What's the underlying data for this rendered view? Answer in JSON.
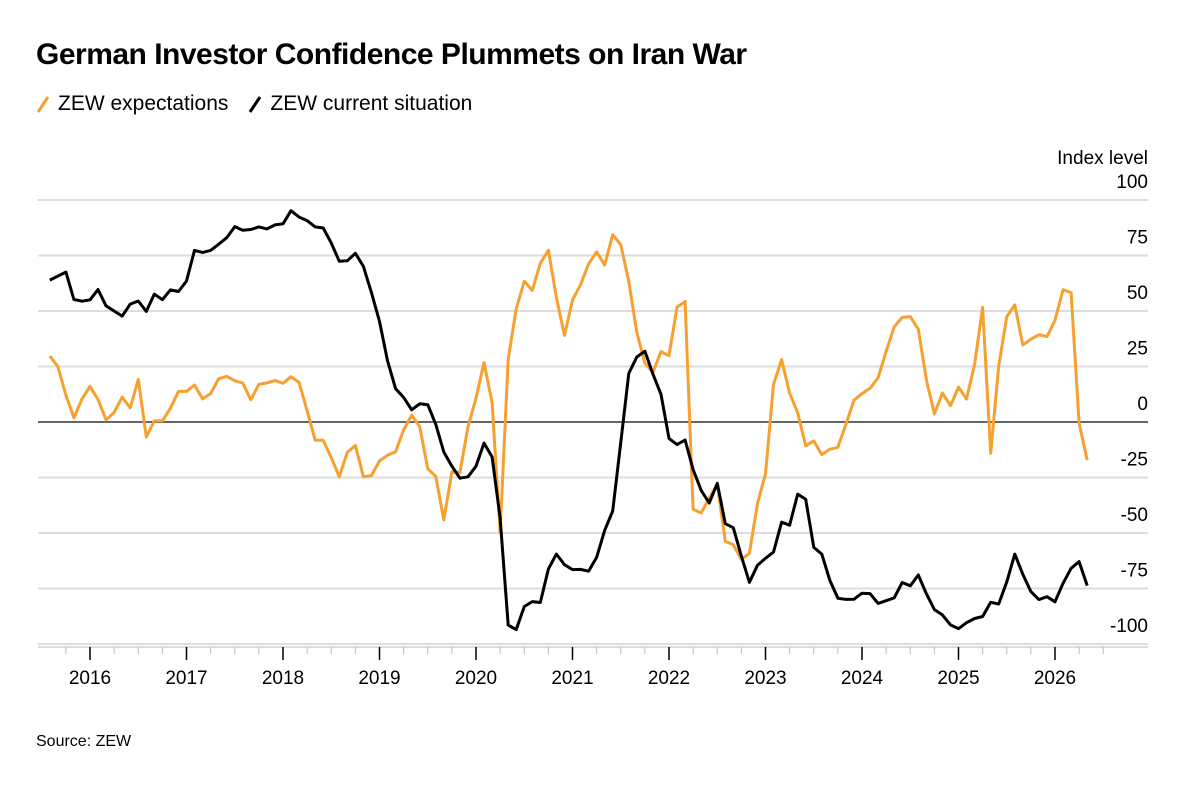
{
  "title": "German Investor Confidence Plummets on Iran War",
  "source": "Source: ZEW",
  "chart_data": {
    "type": "line",
    "title": "German Investor Confidence Plummets on Iran War",
    "ylabel": "Index level",
    "xlabel": "",
    "ylim": [
      -100,
      100
    ],
    "yticks": [
      100,
      75,
      50,
      25,
      0,
      -25,
      -50,
      -75,
      -100
    ],
    "xticks": [
      "2016",
      "2017",
      "2018",
      "2019",
      "2020",
      "2021",
      "2022",
      "2023",
      "2024",
      "2025",
      "2026"
    ],
    "grid": true,
    "legend_position": "top-left",
    "start_month": "2015-07",
    "end_month": "2026-04",
    "frequency": "monthly",
    "series": [
      {
        "name": "ZEW expectations",
        "color": "#f7a030",
        "values": [
          29.7,
          25.0,
          12.1,
          1.9,
          10.4,
          16.1,
          10.2,
          1.0,
          4.3,
          11.2,
          6.4,
          19.2,
          -6.8,
          0.5,
          0.5,
          6.2,
          13.8,
          13.8,
          16.6,
          10.4,
          12.8,
          19.5,
          20.6,
          18.6,
          17.5,
          10.0,
          17.0,
          17.6,
          18.7,
          17.4,
          20.4,
          17.8,
          5.1,
          -8.2,
          -8.2,
          -16.1,
          -24.7,
          -13.7,
          -10.6,
          -24.7,
          -24.1,
          -17.5,
          -15.0,
          -13.4,
          -3.6,
          3.1,
          -2.1,
          -21.1,
          -24.5,
          -44.1,
          -22.5,
          -22.8,
          -2.1,
          10.7,
          26.7,
          8.7,
          -49.5,
          28.2,
          51.0,
          63.4,
          59.3,
          71.5,
          77.4,
          56.1,
          39.0,
          55.0,
          61.8,
          71.2,
          76.6,
          70.7,
          84.4,
          79.8,
          63.3,
          40.4,
          26.5,
          22.3,
          31.7,
          29.9,
          51.7,
          54.3,
          -39.3,
          -41.0,
          -34.3,
          -28.0,
          -53.8,
          -55.3,
          -61.9,
          -59.2,
          -36.7,
          -23.3,
          16.9,
          28.1,
          13.0,
          4.1,
          -10.7,
          -8.5,
          -14.7,
          -12.3,
          -11.4,
          -1.1,
          9.8,
          12.8,
          15.2,
          19.9,
          31.7,
          42.9,
          47.1,
          47.5,
          41.8,
          19.2,
          3.6,
          13.1,
          7.4,
          15.7,
          10.3,
          26.0,
          51.6,
          -14.0,
          25.2,
          47.5,
          52.7,
          34.7,
          37.3,
          39.3,
          38.5,
          45.8,
          59.6,
          58.3,
          -0.5,
          -17.2
        ]
      },
      {
        "name": "ZEW current situation",
        "color": "#000000",
        "values": [
          63.9,
          65.7,
          67.5,
          55.2,
          54.4,
          55.0,
          59.7,
          52.3,
          50.0,
          47.7,
          53.1,
          54.5,
          49.8,
          57.6,
          55.1,
          59.5,
          58.8,
          63.5,
          77.3,
          76.4,
          77.3,
          80.1,
          83.0,
          88.0,
          86.4,
          86.7,
          87.9,
          87.0,
          88.8,
          89.3,
          95.2,
          92.3,
          90.7,
          87.9,
          87.4,
          80.6,
          72.4,
          72.6,
          76.0,
          70.1,
          58.2,
          45.3,
          27.6,
          15.0,
          11.1,
          5.5,
          8.2,
          7.8,
          -1.1,
          -13.5,
          -19.9,
          -25.3,
          -24.7,
          -19.9,
          -9.5,
          -15.7,
          -43.1,
          -91.5,
          -93.5,
          -83.1,
          -80.9,
          -81.3,
          -66.2,
          -59.5,
          -64.3,
          -66.5,
          -66.4,
          -67.2,
          -61.0,
          -48.8,
          -40.1,
          -9.1,
          21.9,
          29.3,
          31.9,
          21.6,
          12.5,
          -7.4,
          -10.2,
          -8.1,
          -21.4,
          -30.8,
          -36.5,
          -27.6,
          -45.8,
          -47.6,
          -60.5,
          -72.2,
          -64.5,
          -61.4,
          -58.6,
          -45.1,
          -46.5,
          -32.5,
          -34.8,
          -56.5,
          -59.5,
          -71.3,
          -79.4,
          -79.9,
          -79.8,
          -77.1,
          -77.3,
          -81.7,
          -80.5,
          -79.2,
          -72.3,
          -73.8,
          -68.9,
          -77.3,
          -84.5,
          -86.9,
          -91.4,
          -93.1,
          -90.4,
          -88.5,
          -87.6,
          -81.2,
          -82.0,
          -72.0,
          -59.5,
          -68.6,
          -76.4,
          -80.0,
          -78.7,
          -81.0,
          -72.7,
          -65.9,
          -62.9,
          -73.7
        ]
      }
    ]
  }
}
